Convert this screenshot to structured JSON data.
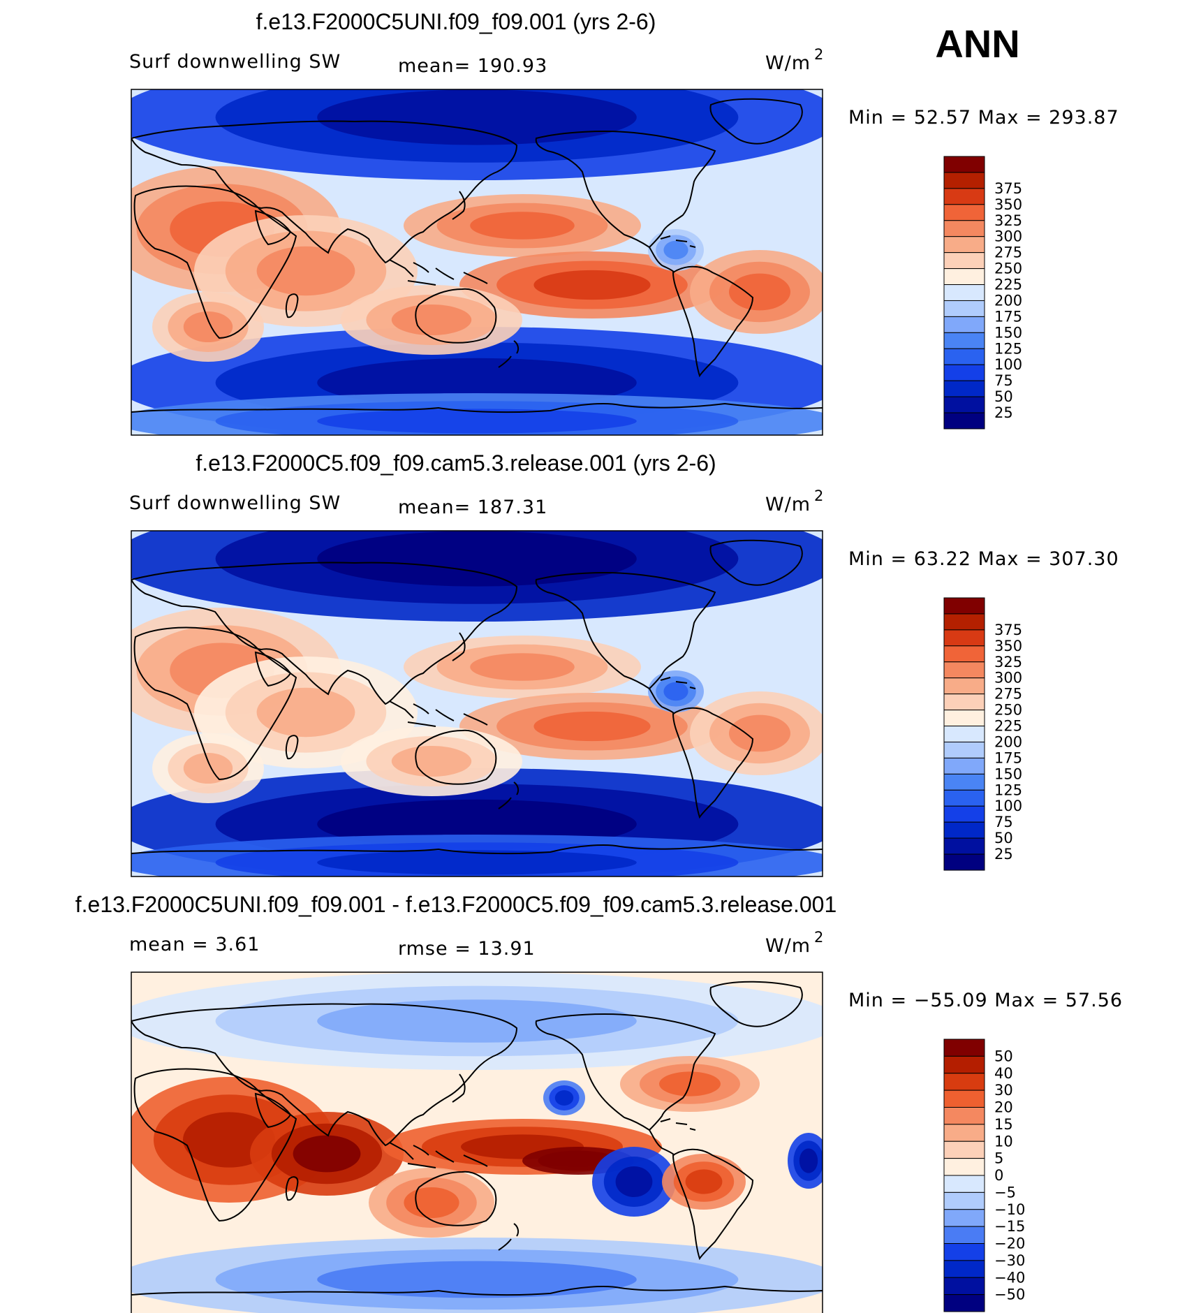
{
  "season": "ANN",
  "palettes": {
    "abs": [
      "#000080",
      "#0010a0",
      "#0028c8",
      "#1440e8",
      "#2a62f0",
      "#4a84f4",
      "#80a8fa",
      "#b0ccfc",
      "#d8e8fe",
      "#fff0e0",
      "#fcd0b8",
      "#f8ac88",
      "#f48860",
      "#f06438",
      "#d83a14",
      "#b42000",
      "#800000"
    ],
    "diff": [
      "#000080",
      "#0010a0",
      "#0028c8",
      "#1440e8",
      "#4a7cf4",
      "#80a8fa",
      "#b0ccfc",
      "#d8e8fe",
      "#fff0e0",
      "#fcd0b8",
      "#f8ac88",
      "#f48860",
      "#ee6030",
      "#d83c10",
      "#b41e00",
      "#800000"
    ]
  },
  "panels": [
    {
      "id": "top",
      "title": "f.e13.F2000C5UNI.f09_f09.001 (yrs 2-6)",
      "variable": "Surf downwelling SW",
      "stat1": "mean=  190.93",
      "stat2": "",
      "units_base": "W/m",
      "units_exp": "2",
      "minmax": "Min  =    52.57  Max  =  293.87",
      "levels": [
        "375",
        "350",
        "325",
        "300",
        "275",
        "250",
        "225",
        "200",
        "175",
        "150",
        "125",
        "100",
        "75",
        "50",
        "25"
      ],
      "palette": "abs"
    },
    {
      "id": "mid",
      "title": "f.e13.F2000C5.f09_f09.cam5.3.release.001 (yrs 2-6)",
      "variable": "Surf downwelling SW",
      "stat1": "mean=  187.31",
      "stat2": "",
      "units_base": "W/m",
      "units_exp": "2",
      "minmax": "Min  =    63.22  Max  =  307.30",
      "levels": [
        "375",
        "350",
        "325",
        "300",
        "275",
        "250",
        "225",
        "200",
        "175",
        "150",
        "125",
        "100",
        "75",
        "50",
        "25"
      ],
      "palette": "abs"
    },
    {
      "id": "diff",
      "title": "f.e13.F2000C5UNI.f09_f09.001 - f.e13.F2000C5.f09_f09.cam5.3.release.001",
      "variable": "mean  =     3.61",
      "stat1": "rmse  =    13.91",
      "stat2": "",
      "units_base": "W/m",
      "units_exp": "2",
      "minmax": "Min  =  −55.09  Max  =    57.56",
      "levels": [
        "50",
        "40",
        "30",
        "20",
        "15",
        "10",
        "5",
        "0",
        "−5",
        "−10",
        "−15",
        "−20",
        "−30",
        "−40",
        "−50"
      ],
      "palette": "diff"
    }
  ]
}
